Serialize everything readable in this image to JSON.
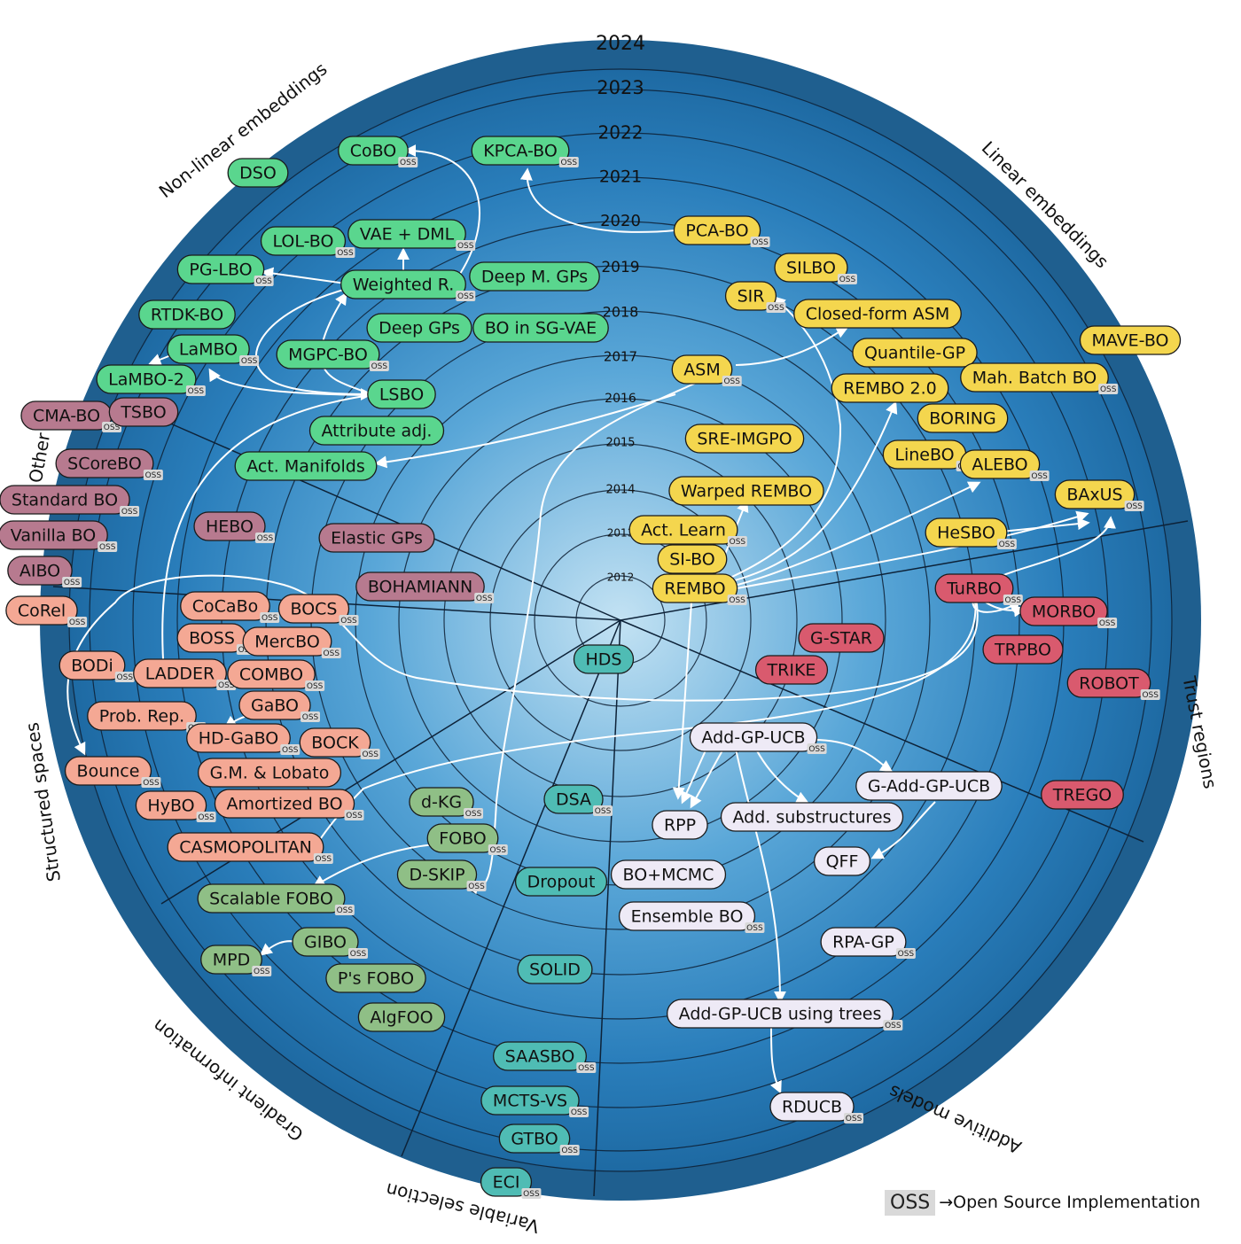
{
  "colors": {
    "ring_outer": "#1f5f8f",
    "center": "#bfe0f2",
    "nonlinear": "#5ad68e",
    "linear": "#f4d64e",
    "other": "#b77a8f",
    "structured": "#f4a894",
    "gradient": "#8fbf86",
    "variable": "#4fbcb4",
    "additive": "#eeeaf6",
    "trust": "#d95a6e",
    "oss_badge": "#d9d9d9"
  },
  "years": [
    "2012",
    "2013",
    "2014",
    "2015",
    "2016",
    "2017",
    "2018",
    "2019",
    "2020",
    "2021",
    "2022",
    "2023",
    "2024"
  ],
  "categories": [
    {
      "label": "Non-linear embeddings"
    },
    {
      "label": "Linear embeddings"
    },
    {
      "label": "Trust regions"
    },
    {
      "label": "Additive models"
    },
    {
      "label": "Variable selection"
    },
    {
      "label": "Gradient information"
    },
    {
      "label": "Structured spaces"
    },
    {
      "label": "Other"
    }
  ],
  "methods": [
    {
      "label": "DSO",
      "group": "nonlinear",
      "oss": false
    },
    {
      "label": "CoBO",
      "group": "nonlinear",
      "oss": true
    },
    {
      "label": "KPCA-BO",
      "group": "nonlinear",
      "oss": true
    },
    {
      "label": "LOL-BO",
      "group": "nonlinear",
      "oss": true
    },
    {
      "label": "VAE + DML",
      "group": "nonlinear",
      "oss": true
    },
    {
      "label": "PG-LBO",
      "group": "nonlinear",
      "oss": true
    },
    {
      "label": "Weighted R.",
      "group": "nonlinear",
      "oss": true
    },
    {
      "label": "Deep M. GPs",
      "group": "nonlinear",
      "oss": false
    },
    {
      "label": "RTDK-BO",
      "group": "nonlinear",
      "oss": false
    },
    {
      "label": "Deep GPs",
      "group": "nonlinear",
      "oss": false
    },
    {
      "label": "BO in SG-VAE",
      "group": "nonlinear",
      "oss": false
    },
    {
      "label": "LaMBO",
      "group": "nonlinear",
      "oss": true
    },
    {
      "label": "MGPC-BO",
      "group": "nonlinear",
      "oss": true
    },
    {
      "label": "LaMBO-2",
      "group": "nonlinear",
      "oss": true
    },
    {
      "label": "LSBO",
      "group": "nonlinear",
      "oss": false
    },
    {
      "label": "Attribute adj.",
      "group": "nonlinear",
      "oss": false
    },
    {
      "label": "Act. Manifolds",
      "group": "nonlinear",
      "oss": false
    },
    {
      "label": "PCA-BO",
      "group": "linear",
      "oss": true
    },
    {
      "label": "SILBO",
      "group": "linear",
      "oss": true
    },
    {
      "label": "SIR",
      "group": "linear",
      "oss": true
    },
    {
      "label": "Closed-form ASM",
      "group": "linear",
      "oss": false
    },
    {
      "label": "MAVE-BO",
      "group": "linear",
      "oss": false
    },
    {
      "label": "Quantile-GP",
      "group": "linear",
      "oss": false
    },
    {
      "label": "ASM",
      "group": "linear",
      "oss": true
    },
    {
      "label": "Mah. Batch BO",
      "group": "linear",
      "oss": true
    },
    {
      "label": "REMBO 2.0",
      "group": "linear",
      "oss": false
    },
    {
      "label": "BORING",
      "group": "linear",
      "oss": false
    },
    {
      "label": "SRE-IMGPO",
      "group": "linear",
      "oss": false
    },
    {
      "label": "LineBO",
      "group": "linear",
      "oss": true
    },
    {
      "label": "ALEBO",
      "group": "linear",
      "oss": true
    },
    {
      "label": "Warped REMBO",
      "group": "linear",
      "oss": false
    },
    {
      "label": "BAxUS",
      "group": "linear",
      "oss": true
    },
    {
      "label": "Act. Learn",
      "group": "linear",
      "oss": true
    },
    {
      "label": "HeSBO",
      "group": "linear",
      "oss": true
    },
    {
      "label": "SI-BO",
      "group": "linear",
      "oss": false
    },
    {
      "label": "REMBO",
      "group": "linear",
      "oss": true
    },
    {
      "label": "CMA-BO",
      "group": "other",
      "oss": true
    },
    {
      "label": "TSBO",
      "group": "other",
      "oss": false
    },
    {
      "label": "SCoreBO",
      "group": "other",
      "oss": true
    },
    {
      "label": "Standard BO",
      "group": "other",
      "oss": true
    },
    {
      "label": "Vanilla BO",
      "group": "other",
      "oss": true
    },
    {
      "label": "HEBO",
      "group": "other",
      "oss": true
    },
    {
      "label": "Elastic GPs",
      "group": "other",
      "oss": false
    },
    {
      "label": "AIBO",
      "group": "other",
      "oss": true
    },
    {
      "label": "BOHAMIANN",
      "group": "other",
      "oss": true
    },
    {
      "label": "CoRel",
      "group": "structured",
      "oss": true
    },
    {
      "label": "CoCaBo",
      "group": "structured",
      "oss": true
    },
    {
      "label": "BOCS",
      "group": "structured",
      "oss": true
    },
    {
      "label": "BOSS",
      "group": "structured",
      "oss": true
    },
    {
      "label": "MercBO",
      "group": "structured",
      "oss": true
    },
    {
      "label": "BODi",
      "group": "structured",
      "oss": true
    },
    {
      "label": "LADDER",
      "group": "structured",
      "oss": true
    },
    {
      "label": "COMBO",
      "group": "structured",
      "oss": true
    },
    {
      "label": "GaBO",
      "group": "structured",
      "oss": true
    },
    {
      "label": "Prob. Rep.",
      "group": "structured",
      "oss": true
    },
    {
      "label": "HD-GaBO",
      "group": "structured",
      "oss": true
    },
    {
      "label": "BOCK",
      "group": "structured",
      "oss": true
    },
    {
      "label": "G.M. & Lobato",
      "group": "structured",
      "oss": false
    },
    {
      "label": "Bounce",
      "group": "structured",
      "oss": true
    },
    {
      "label": "HyBO",
      "group": "structured",
      "oss": true
    },
    {
      "label": "Amortized BO",
      "group": "structured",
      "oss": true
    },
    {
      "label": "CASMOPOLITAN",
      "group": "structured",
      "oss": true
    },
    {
      "label": "d-KG",
      "group": "gradient",
      "oss": true
    },
    {
      "label": "FOBO",
      "group": "gradient",
      "oss": true
    },
    {
      "label": "D-SKIP",
      "group": "gradient",
      "oss": true
    },
    {
      "label": "Scalable FOBO",
      "group": "gradient",
      "oss": true
    },
    {
      "label": "GIBO",
      "group": "gradient",
      "oss": true
    },
    {
      "label": "MPD",
      "group": "gradient",
      "oss": true
    },
    {
      "label": "P's FOBO",
      "group": "gradient",
      "oss": false
    },
    {
      "label": "AlgFOO",
      "group": "gradient",
      "oss": false
    },
    {
      "label": "HDS",
      "group": "variable",
      "oss": false
    },
    {
      "label": "DSA",
      "group": "variable",
      "oss": true
    },
    {
      "label": "Dropout",
      "group": "variable",
      "oss": false
    },
    {
      "label": "SOLID",
      "group": "variable",
      "oss": false
    },
    {
      "label": "SAASBO",
      "group": "variable",
      "oss": true
    },
    {
      "label": "MCTS-VS",
      "group": "variable",
      "oss": true
    },
    {
      "label": "GTBO",
      "group": "variable",
      "oss": true
    },
    {
      "label": "ECI",
      "group": "variable",
      "oss": true
    },
    {
      "label": "Add-GP-UCB",
      "group": "additive",
      "oss": true
    },
    {
      "label": "G-Add-GP-UCB",
      "group": "additive",
      "oss": false
    },
    {
      "label": "RPP",
      "group": "additive",
      "oss": false
    },
    {
      "label": "Add. substructures",
      "group": "additive",
      "oss": false
    },
    {
      "label": "QFF",
      "group": "additive",
      "oss": false
    },
    {
      "label": "BO+MCMC",
      "group": "additive",
      "oss": false
    },
    {
      "label": "Ensemble BO",
      "group": "additive",
      "oss": true
    },
    {
      "label": "RPA-GP",
      "group": "additive",
      "oss": true
    },
    {
      "label": "Add-GP-UCB using trees",
      "group": "additive",
      "oss": true
    },
    {
      "label": "RDUCB",
      "group": "additive",
      "oss": true
    },
    {
      "label": "TuRBO",
      "group": "trust",
      "oss": true
    },
    {
      "label": "MORBO",
      "group": "trust",
      "oss": true
    },
    {
      "label": "G-STAR",
      "group": "trust",
      "oss": false
    },
    {
      "label": "TRPBO",
      "group": "trust",
      "oss": false
    },
    {
      "label": "TRIKE",
      "group": "trust",
      "oss": false
    },
    {
      "label": "ROBOT",
      "group": "trust",
      "oss": true
    },
    {
      "label": "TREGO",
      "group": "trust",
      "oss": false
    }
  ],
  "oss_label": "OSS",
  "legend": {
    "badge": "OSS",
    "text": "→Open Source Implementation"
  }
}
